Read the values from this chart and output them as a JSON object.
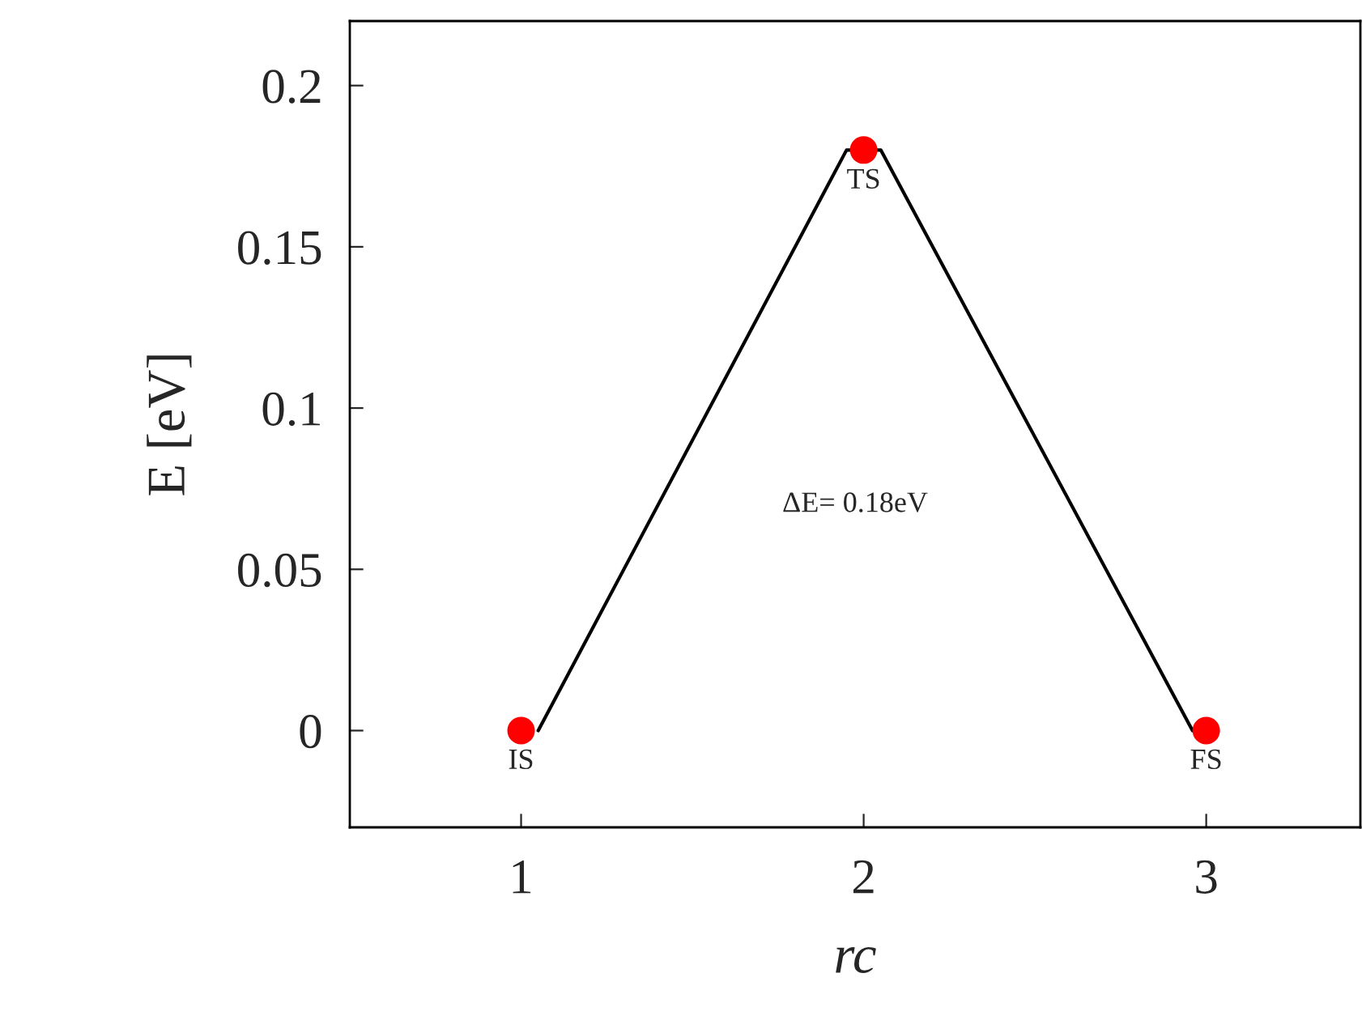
{
  "chart_data": {
    "type": "line",
    "xlabel": "rc",
    "ylabel": "E [eV]",
    "series": [
      {
        "color": "#000000",
        "x": [
          1.05,
          1.95,
          2.05,
          2.96
        ],
        "values": [
          0,
          0.18,
          0.18,
          0
        ],
        "marker": "none",
        "line_style": "solid"
      },
      {
        "type": "scatter",
        "color": "#ff0000",
        "x": [
          1,
          2,
          3
        ],
        "values": [
          0,
          0.18,
          0
        ],
        "marker": "circle"
      }
    ],
    "annotations": [
      {
        "text": "IS",
        "x": 1,
        "y": 0
      },
      {
        "text": "TS",
        "x": 2,
        "y": 0.18
      },
      {
        "text": "FS",
        "x": 3,
        "y": 0
      },
      "ΔE= 0.18eV"
    ],
    "xlim": [
      0.5,
      3.45
    ],
    "ylim": [
      -0.03,
      0.22
    ],
    "xticks": [
      1,
      2,
      3
    ],
    "yticks": [
      0,
      0.05,
      0.1,
      0.15,
      0.2
    ],
    "grid": false,
    "legend": false
  }
}
